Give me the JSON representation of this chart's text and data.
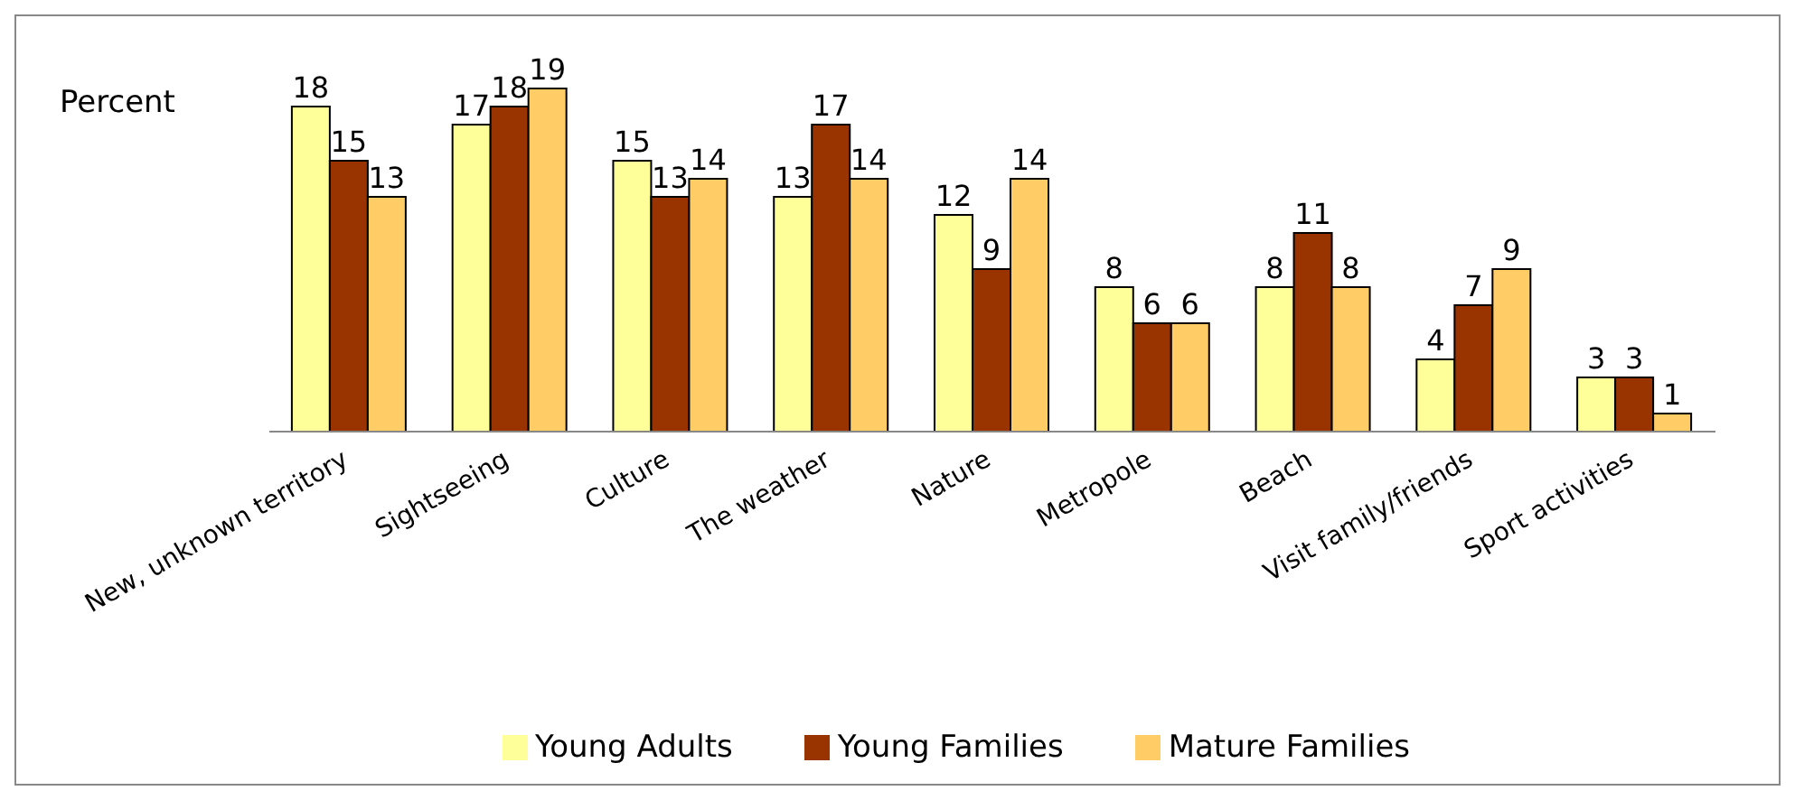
{
  "chart_data": {
    "type": "bar",
    "ylabel": "Percent",
    "categories": [
      "New, unknown territory",
      "Sightseeing",
      "Culture",
      "The weather",
      "Nature",
      "Metropole",
      "Beach",
      "Visit family/friends",
      "Sport activities"
    ],
    "series": [
      {
        "name": "Young Adults",
        "color": "#ffff99",
        "values": [
          18,
          17,
          15,
          13,
          12,
          8,
          8,
          4,
          3
        ]
      },
      {
        "name": "Young Families",
        "color": "#993300",
        "values": [
          15,
          18,
          13,
          17,
          9,
          6,
          11,
          7,
          3
        ]
      },
      {
        "name": "Mature Families",
        "color": "#ffcc66",
        "values": [
          13,
          19,
          14,
          14,
          14,
          6,
          8,
          9,
          1
        ]
      }
    ],
    "data_labels": true,
    "legend": "bottom",
    "grid": false
  }
}
